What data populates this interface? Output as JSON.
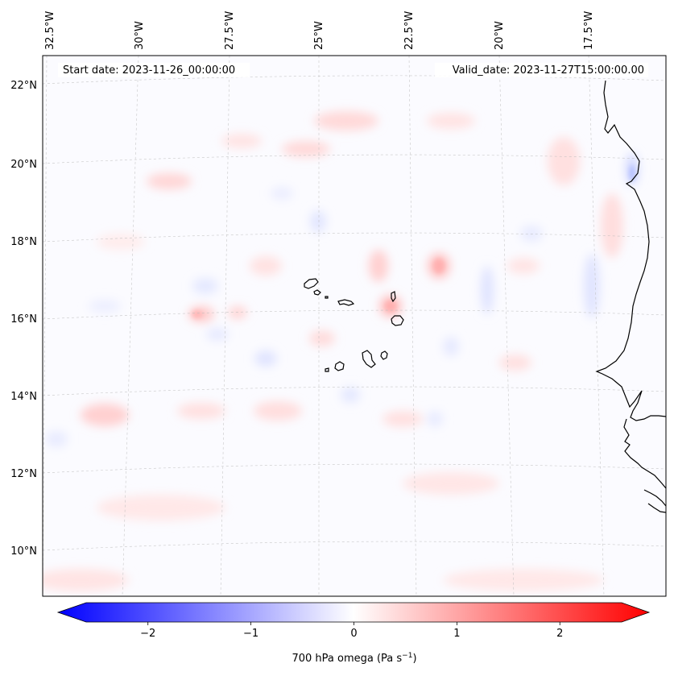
{
  "header": {
    "start_date": "Start date: 2023-11-26_00:00:00",
    "valid_date": "Valid_date: 2023-11-27T15:00:00.00"
  },
  "map": {
    "projection": "lambert-conformal",
    "lon_ticks": [
      "32.5°W",
      "30°W",
      "27.5°W",
      "25°W",
      "22.5°W",
      "20°W",
      "17.5°W"
    ],
    "lat_ticks": [
      "22°N",
      "20°N",
      "18°N",
      "16°N",
      "14°N",
      "12°N",
      "10°N"
    ],
    "gridlines": true,
    "coastline_color": "#000000",
    "features": [
      "cabo-verde-islands",
      "west-africa-coastline"
    ]
  },
  "colorbar": {
    "label_main": "700 hPa omega (Pa s",
    "label_exp": "−1",
    "label_close": ")",
    "ticks": [
      "−2",
      "−1",
      "0",
      "1",
      "2"
    ],
    "tick_values": [
      -2,
      -1,
      0,
      1,
      2
    ],
    "vmin": -2.6,
    "vmax": 2.6,
    "extend": "both",
    "cmap": "bwr",
    "colors": {
      "min": "#0000ff",
      "mid": "#ffffff",
      "max": "#ff0000"
    }
  }
}
